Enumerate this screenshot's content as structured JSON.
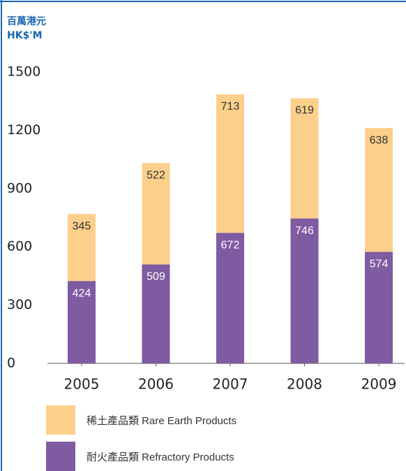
{
  "chart_data": {
    "type": "stacked_bar",
    "y_label_zh": "百萬港元",
    "y_label_en": "HK$'M",
    "categories": [
      "2005",
      "2006",
      "2007",
      "2008",
      "2009"
    ],
    "series": [
      {
        "name": "稀土產品類 Rare Earth Products",
        "color": "#fccf8b",
        "values": [
          345,
          522,
          713,
          619,
          638
        ]
      },
      {
        "name": "耐火產品類 Refractory Products",
        "color": "#7f5ba1",
        "values": [
          424,
          509,
          672,
          746,
          574
        ]
      }
    ],
    "ylim": [
      0,
      1500
    ],
    "yticks": [
      0,
      300,
      600,
      900,
      1200,
      1500
    ]
  }
}
